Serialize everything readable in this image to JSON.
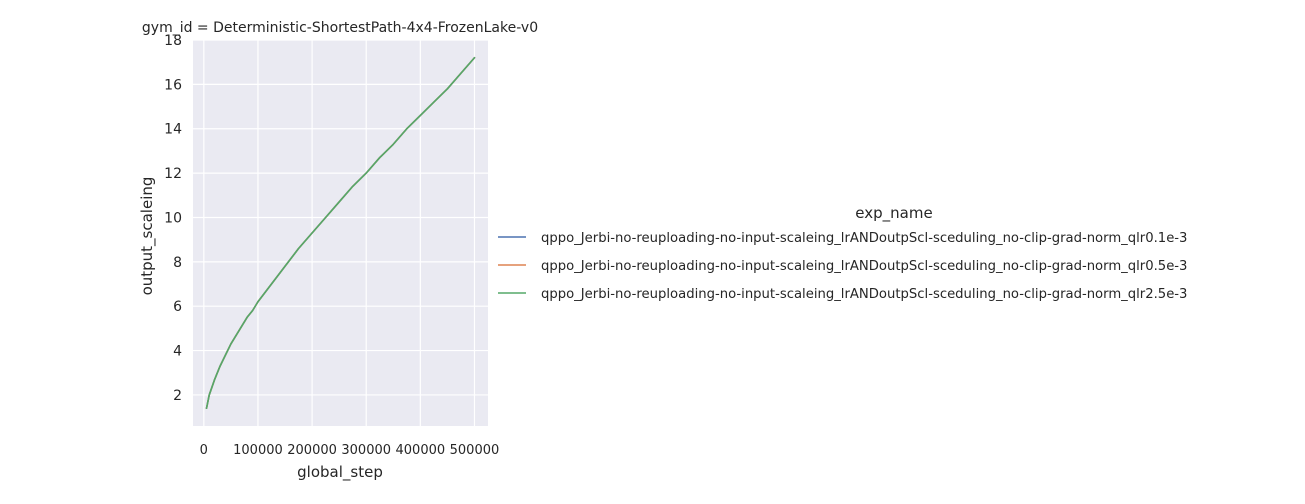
{
  "chart_data": {
    "type": "line",
    "title": "gym_id = Deterministic-ShortestPath-4x4-FrozenLake-v0",
    "xlabel": "global_step",
    "ylabel": "output_scaleing",
    "xlim": [
      -20000,
      525000
    ],
    "ylim": [
      0.6,
      18
    ],
    "xticks": [
      0,
      100000,
      200000,
      300000,
      400000,
      500000
    ],
    "xtick_labels": [
      "0",
      "100000",
      "200000",
      "300000",
      "400000",
      "500000"
    ],
    "yticks": [
      2,
      4,
      6,
      8,
      10,
      12,
      14,
      16,
      18
    ],
    "ytick_labels": [
      "2",
      "4",
      "6",
      "8",
      "10",
      "12",
      "14",
      "16",
      "18"
    ],
    "grid": true,
    "background": "#eaeaf2",
    "legend": {
      "title": "exp_name",
      "placement": "right-outside"
    },
    "series": [
      {
        "name": "qppo_Jerbi-no-reuploading-no-input-scaleing_lrANDoutpScl-sceduling_no-clip-grad-norm_qlr0.1e-3",
        "color": "#4c72b0",
        "x": [
          5000,
          10000,
          20000,
          30000,
          40000,
          50000,
          60000,
          70000,
          80000,
          90000,
          100000,
          125000,
          150000,
          175000,
          200000,
          225000,
          250000,
          275000,
          300000,
          325000,
          350000,
          375000,
          400000,
          425000,
          450000,
          475000,
          500000
        ],
        "y": [
          1.4,
          2.0,
          2.7,
          3.3,
          3.8,
          4.3,
          4.7,
          5.1,
          5.5,
          5.8,
          6.2,
          7.0,
          7.8,
          8.6,
          9.3,
          10.0,
          10.7,
          11.4,
          12.0,
          12.7,
          13.3,
          14.0,
          14.6,
          15.2,
          15.8,
          16.5,
          17.2
        ]
      },
      {
        "name": "qppo_Jerbi-no-reuploading-no-input-scaleing_lrANDoutpScl-sceduling_no-clip-grad-norm_qlr0.5e-3",
        "color": "#dd8452",
        "x": [
          5000,
          10000,
          20000,
          30000,
          40000,
          50000,
          60000,
          70000,
          80000,
          90000,
          100000,
          125000,
          150000,
          175000,
          200000,
          225000,
          250000,
          275000,
          300000,
          325000,
          350000,
          375000,
          400000,
          425000,
          450000,
          475000,
          500000
        ],
        "y": [
          1.4,
          2.0,
          2.7,
          3.3,
          3.8,
          4.3,
          4.7,
          5.1,
          5.5,
          5.8,
          6.2,
          7.0,
          7.8,
          8.6,
          9.3,
          10.0,
          10.7,
          11.4,
          12.0,
          12.7,
          13.3,
          14.0,
          14.6,
          15.2,
          15.8,
          16.5,
          17.2
        ]
      },
      {
        "name": "qppo_Jerbi-no-reuploading-no-input-scaleing_lrANDoutpScl-sceduling_no-clip-grad-norm_qlr2.5e-3",
        "color": "#55a868",
        "x": [
          5000,
          10000,
          20000,
          30000,
          40000,
          50000,
          60000,
          70000,
          80000,
          90000,
          100000,
          125000,
          150000,
          175000,
          200000,
          225000,
          250000,
          275000,
          300000,
          325000,
          350000,
          375000,
          400000,
          425000,
          450000,
          475000,
          500000
        ],
        "y": [
          1.4,
          2.0,
          2.7,
          3.3,
          3.8,
          4.3,
          4.7,
          5.1,
          5.5,
          5.8,
          6.2,
          7.0,
          7.8,
          8.6,
          9.3,
          10.0,
          10.7,
          11.4,
          12.0,
          12.7,
          13.3,
          14.0,
          14.6,
          15.2,
          15.8,
          16.5,
          17.2
        ]
      }
    ]
  }
}
